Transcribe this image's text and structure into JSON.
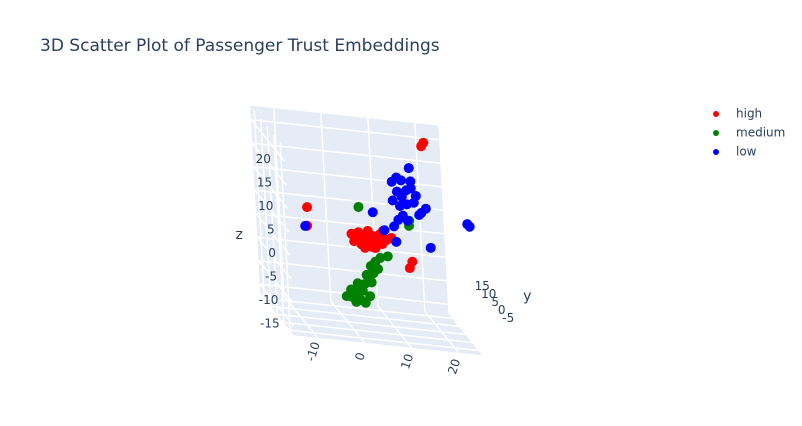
{
  "chart_data": {
    "type": "scatter3d",
    "title": "3D Scatter Plot of Passenger Trust Embeddings",
    "ylabel": "y",
    "zlabel": "z",
    "xlim": [
      -15,
      25
    ],
    "ylim": [
      -8,
      18
    ],
    "zlim": [
      -17,
      23
    ],
    "xticks": [
      -10,
      0,
      10,
      20
    ],
    "yticks": [
      -5,
      0,
      5,
      10,
      15
    ],
    "zticks": [
      -15,
      -10,
      -5,
      0,
      5,
      10,
      15,
      20
    ],
    "grid": true,
    "legend": "top-right",
    "series": [
      {
        "name": "high",
        "color": "#ff0000",
        "x": [
          0.5,
          1,
          2,
          2.5,
          3,
          4,
          4,
          5,
          5.5,
          6,
          6.5,
          7,
          8,
          3.5,
          1.5,
          4.5,
          7.5,
          9,
          19,
          19.5,
          -8.7,
          -8.9,
          12.6,
          13.2
        ],
        "y": [
          0,
          0,
          0,
          0,
          0,
          0,
          0,
          0,
          0,
          0,
          0,
          0,
          0,
          1,
          -1,
          -1,
          1,
          0,
          10,
          10,
          0,
          0,
          0,
          0
        ],
        "z": [
          3.5,
          2,
          4,
          1.5,
          3,
          4.5,
          2,
          3.5,
          1,
          2.5,
          4,
          2,
          3,
          0.5,
          3,
          1.5,
          4.5,
          3.5,
          20.7,
          21.5,
          8.2,
          4.2,
          -2.5,
          -1.1
        ]
      },
      {
        "name": "medium",
        "color": "#008000",
        "x": [
          -1,
          0,
          1,
          2,
          -1,
          0,
          1.5,
          3,
          0.5,
          2,
          3.5,
          2.5,
          4,
          3.5,
          5,
          -2,
          4.5,
          2.3,
          12.9,
          13,
          6.4,
          8
        ],
        "y": [
          -3,
          -3,
          -3,
          -3,
          -3,
          -3,
          -3,
          -3,
          -3,
          -3,
          -3,
          -3,
          -3,
          -3,
          -3,
          -3,
          -3,
          0,
          0,
          0,
          0,
          0
        ],
        "z": [
          -9,
          -10,
          -9.5,
          -10,
          -7.5,
          -8,
          -7.5,
          -8.5,
          -6,
          -6,
          -5.5,
          -4,
          -3.5,
          -2,
          -2.5,
          -9,
          -1,
          9.4,
          6.5,
          7.6,
          -1,
          -0.5
        ]
      },
      {
        "name": "low",
        "color": "#0000ff",
        "x": [
          11,
          12,
          13,
          12,
          13,
          14,
          15,
          11,
          12.5,
          14,
          15.5,
          16,
          13,
          12,
          14,
          17,
          18,
          11,
          15,
          16.5,
          14.8,
          -10.6,
          23.3,
          23.8,
          17.3,
          5.3,
          10,
          7.6
        ],
        "y": [
          5,
          5,
          5,
          5,
          5,
          5,
          5,
          5,
          5,
          5,
          5,
          5,
          5,
          5,
          5,
          5,
          5,
          5,
          5,
          5,
          5,
          -5,
          -8,
          -8,
          0,
          0,
          0,
          0
        ],
        "z": [
          14,
          15,
          14.5,
          12,
          11,
          12.5,
          13,
          10,
          9,
          9.5,
          10,
          11.5,
          7,
          6,
          6,
          8,
          9,
          4.5,
          14.5,
          7.5,
          17.3,
          5.7,
          10.7,
          10.2,
          2.3,
          8.6,
          2.8,
          5
        ]
      }
    ]
  }
}
